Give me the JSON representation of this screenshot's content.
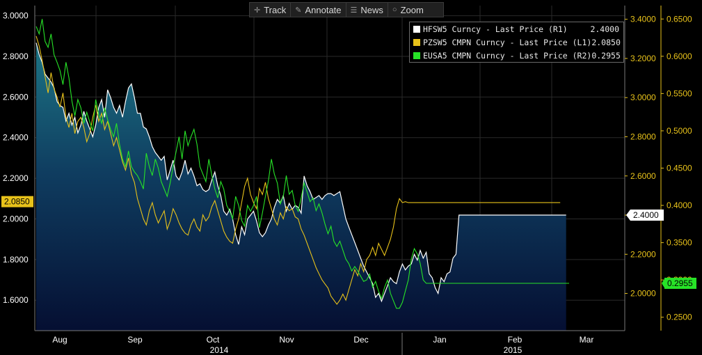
{
  "toolbar": {
    "track": "Track",
    "annotate": "Annotate",
    "news": "News",
    "zoom": "Zoom"
  },
  "legend": [
    {
      "name": "HFSW5 Curncy - Last Price (R1)",
      "value": "2.4000",
      "color": "#ffffff"
    },
    {
      "name": "PZSW5 CMPN Curncy - Last Price (L1)",
      "value": "2.0850",
      "color": "#e8c21a"
    },
    {
      "name": "EUSA5 CMPN Curncy - Last Price (R2)",
      "value": "0.2955",
      "color": "#27e327"
    }
  ],
  "last_value_tags": {
    "left": "2.0850",
    "r1": "2.4000",
    "r2": "0.2955"
  },
  "colors": {
    "background": "#000000",
    "area_top": "#1d6f80",
    "area_bottom": "#061236",
    "axis_left": "#ffffff",
    "axis_r1": "#e8c21a",
    "axis_r2": "#e8c21a"
  },
  "chart_data": {
    "type": "line",
    "x_labels": {
      "months": [
        "Aug",
        "Sep",
        "Oct",
        "Nov",
        "Dec",
        "Jan",
        "Feb",
        "Mar"
      ],
      "years": [
        "2014",
        "2015"
      ]
    },
    "axes": {
      "left": {
        "ylim": [
          1.45,
          3.05
        ],
        "ticks": [
          "3.0000",
          "2.8000",
          "2.6000",
          "2.4000",
          "2.2000",
          "2.0000",
          "1.8000",
          "1.6000"
        ]
      },
      "r1": {
        "ylim": [
          1.81,
          3.47
        ],
        "ticks": [
          "3.4000",
          "3.2000",
          "3.0000",
          "2.8000",
          "2.6000",
          "2.4000",
          "2.2000",
          "2.0000"
        ]
      },
      "r2": {
        "ylim": [
          0.232,
          0.668
        ],
        "ticks": [
          "0.6500",
          "0.6000",
          "0.5500",
          "0.5000",
          "0.4500",
          "0.4000",
          "0.3500",
          "0.3000",
          "0.2500"
        ]
      }
    },
    "series": [
      {
        "name": "HFSW5 Curncy - Last Price (R1)",
        "axis": "r1",
        "style": "area",
        "values": [
          3.28,
          3.22,
          3.18,
          3.12,
          3.1,
          3.08,
          3.05,
          2.98,
          2.96,
          2.95,
          2.88,
          2.92,
          2.86,
          2.9,
          2.82,
          2.86,
          2.93,
          2.88,
          2.84,
          2.8,
          2.86,
          2.95,
          2.99,
          2.9,
          3.04,
          3.0,
          2.95,
          2.92,
          2.96,
          2.9,
          2.98,
          3.05,
          3.07,
          3.0,
          2.92,
          2.92,
          2.85,
          2.84,
          2.8,
          2.75,
          2.72,
          2.7,
          2.68,
          2.7,
          2.58,
          2.63,
          2.68,
          2.6,
          2.58,
          2.62,
          2.68,
          2.61,
          2.64,
          2.6,
          2.55,
          2.56,
          2.53,
          2.52,
          2.53,
          2.58,
          2.62,
          2.55,
          2.5,
          2.42,
          2.4,
          2.43,
          2.38,
          2.3,
          2.25,
          2.34,
          2.3,
          2.38,
          2.4,
          2.42,
          2.37,
          2.31,
          2.29,
          2.31,
          2.35,
          2.38,
          2.44,
          2.48,
          2.46,
          2.5,
          2.42,
          2.46,
          2.43,
          2.45,
          2.44,
          2.41,
          2.6,
          2.55,
          2.52,
          2.48,
          2.49,
          2.5,
          2.48,
          2.5,
          2.51,
          2.51,
          2.5,
          2.51,
          2.52,
          2.45,
          2.38,
          2.34,
          2.3,
          2.26,
          2.22,
          2.18,
          2.14,
          2.11,
          2.08,
          2.05,
          1.98,
          2.0,
          1.96,
          2.0,
          2.04,
          2.08,
          2.06,
          2.05,
          2.11,
          2.15,
          2.12,
          2.14,
          2.15,
          2.2,
          2.17,
          2.22,
          2.18,
          2.21,
          2.1,
          2.08,
          2.03,
          2.0,
          2.08,
          2.06,
          2.1,
          2.11,
          2.18,
          2.2,
          2.4,
          2.4,
          2.4,
          2.4,
          2.4,
          2.4,
          2.4,
          2.4,
          2.4,
          2.4,
          2.4,
          2.4,
          2.4,
          2.4,
          2.4,
          2.4,
          2.4,
          2.4,
          2.4,
          2.4,
          2.4,
          2.4,
          2.4,
          2.4,
          2.4,
          2.4,
          2.4,
          2.4,
          2.4,
          2.4,
          2.4,
          2.4,
          2.4,
          2.4,
          2.4,
          2.4,
          2.4
        ]
      },
      {
        "name": "PZSW5 CMPN Curncy - Last Price (L1)",
        "axis": "left",
        "style": "line",
        "values": [
          2.9,
          2.85,
          2.78,
          2.7,
          2.62,
          2.72,
          2.64,
          2.6,
          2.55,
          2.62,
          2.5,
          2.45,
          2.52,
          2.42,
          2.48,
          2.5,
          2.45,
          2.38,
          2.42,
          2.5,
          2.56,
          2.48,
          2.52,
          2.44,
          2.48,
          2.42,
          2.36,
          2.4,
          2.34,
          2.28,
          2.24,
          2.3,
          2.22,
          2.18,
          2.1,
          2.05,
          2.0,
          1.97,
          2.04,
          2.08,
          2.02,
          1.98,
          2.01,
          2.04,
          1.95,
          1.99,
          2.05,
          2.02,
          1.98,
          1.95,
          1.93,
          1.92,
          1.97,
          2.0,
          1.96,
          1.94,
          2.02,
          1.99,
          2.01,
          2.06,
          2.09,
          2.04,
          1.99,
          1.94,
          1.91,
          1.89,
          1.88,
          1.95,
          2.0,
          2.08,
          2.16,
          2.2,
          2.12,
          2.08,
          2.05,
          2.15,
          2.12,
          2.18,
          2.1,
          2.05,
          2.0,
          1.97,
          2.03,
          2.0,
          2.06,
          2.04,
          2.05,
          2.01,
          2.0,
          1.95,
          1.92,
          1.88,
          1.84,
          1.8,
          1.76,
          1.73,
          1.7,
          1.68,
          1.66,
          1.62,
          1.6,
          1.58,
          1.6,
          1.63,
          1.6,
          1.65,
          1.7,
          1.75,
          1.72,
          1.78,
          1.74,
          1.8,
          1.82,
          1.86,
          1.82,
          1.88,
          1.85,
          1.82,
          1.86,
          1.9,
          1.96,
          2.05,
          2.1,
          2.08,
          2.085,
          2.08,
          2.08,
          2.08,
          2.08,
          2.08,
          2.08,
          2.08,
          2.08,
          2.08,
          2.08,
          2.08,
          2.08,
          2.08,
          2.08,
          2.08,
          2.08,
          2.08,
          2.08,
          2.08,
          2.08,
          2.08,
          2.08,
          2.08,
          2.08,
          2.08,
          2.08,
          2.08,
          2.08,
          2.08,
          2.08,
          2.08,
          2.08,
          2.08,
          2.08,
          2.08,
          2.08,
          2.08,
          2.08,
          2.08,
          2.08,
          2.08,
          2.08,
          2.08,
          2.08,
          2.08,
          2.08,
          2.08,
          2.08,
          2.08,
          2.08,
          2.08,
          2.08
        ]
      },
      {
        "name": "EUSA5 CMPN Curncy - Last Price (R2)",
        "axis": "r2",
        "style": "line",
        "values": [
          0.64,
          0.63,
          0.65,
          0.62,
          0.612,
          0.63,
          0.602,
          0.592,
          0.581,
          0.562,
          0.592,
          0.571,
          0.54,
          0.52,
          0.542,
          0.531,
          0.51,
          0.525,
          0.512,
          0.5,
          0.542,
          0.522,
          0.51,
          0.531,
          0.515,
          0.502,
          0.492,
          0.51,
          0.482,
          0.462,
          0.452,
          0.473,
          0.452,
          0.445,
          0.44,
          0.432,
          0.422,
          0.47,
          0.452,
          0.44,
          0.462,
          0.45,
          0.432,
          0.422,
          0.412,
          0.43,
          0.452,
          0.472,
          0.492,
          0.462,
          0.5,
          0.48,
          0.492,
          0.502,
          0.482,
          0.452,
          0.442,
          0.432,
          0.462,
          0.44,
          0.422,
          0.41,
          0.432,
          0.422,
          0.4,
          0.392,
          0.382,
          0.412,
          0.4,
          0.38,
          0.372,
          0.4,
          0.392,
          0.4,
          0.412,
          0.37,
          0.39,
          0.412,
          0.433,
          0.462,
          0.442,
          0.43,
          0.402,
          0.412,
          0.44,
          0.415,
          0.42,
          0.4,
          0.392,
          0.41,
          0.43,
          0.418,
          0.405,
          0.41,
          0.393,
          0.402,
          0.39,
          0.375,
          0.362,
          0.372,
          0.352,
          0.345,
          0.352,
          0.34,
          0.328,
          0.322,
          0.312,
          0.318,
          0.312,
          0.305,
          0.298,
          0.3,
          0.308,
          0.29,
          0.298,
          0.285,
          0.275,
          0.29,
          0.3,
          0.282,
          0.272,
          0.262,
          0.262,
          0.27,
          0.285,
          0.3,
          0.328,
          0.342,
          0.335,
          0.322,
          0.3,
          0.2955,
          0.2955,
          0.2955,
          0.2955,
          0.2955,
          0.2955,
          0.2955,
          0.2955,
          0.2955,
          0.2955,
          0.2955,
          0.2955,
          0.2955,
          0.2955,
          0.2955,
          0.2955,
          0.2955,
          0.2955,
          0.2955,
          0.2955,
          0.2955,
          0.2955,
          0.2955,
          0.2955,
          0.2955,
          0.2955,
          0.2955,
          0.2955,
          0.2955,
          0.2955,
          0.2955,
          0.2955,
          0.2955,
          0.2955,
          0.2955,
          0.2955,
          0.2955,
          0.2955,
          0.2955,
          0.2955,
          0.2955,
          0.2955,
          0.2955,
          0.2955,
          0.2955,
          0.2955,
          0.2955,
          0.2955,
          0.2955
        ]
      }
    ]
  }
}
